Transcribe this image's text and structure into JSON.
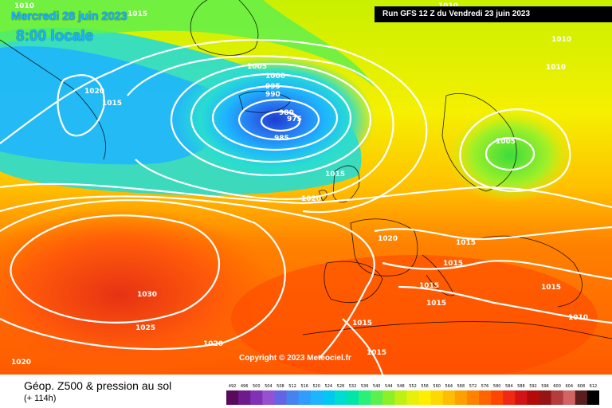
{
  "header": {
    "date": "Mercredi 28 juin 2023",
    "time": "8:00 locale",
    "run": "Run GFS 12 Z du Vendredi 23 juin 2023"
  },
  "copyright": "Copyright © 2023 Meteociel.fr",
  "legend": {
    "title": "Géop. Z500 & pression au sol",
    "subtitle": "(+ 114h)",
    "ticks": [
      "492",
      "496",
      "500",
      "504",
      "508",
      "512",
      "516",
      "520",
      "524",
      "528",
      "532",
      "536",
      "540",
      "544",
      "548",
      "552",
      "556",
      "560",
      "564",
      "568",
      "572",
      "576",
      "580",
      "584",
      "588",
      "592",
      "596",
      "600",
      "604",
      "608",
      "612"
    ],
    "colors": [
      "#5a0a5a",
      "#6e1a8c",
      "#8230b4",
      "#9650d2",
      "#6464e6",
      "#4682f0",
      "#329bff",
      "#1eb4ff",
      "#00c8f0",
      "#00dcd2",
      "#00e6a8",
      "#28f07a",
      "#5af050",
      "#8cf028",
      "#bef014",
      "#e6f00a",
      "#ffee00",
      "#ffd800",
      "#ffbe00",
      "#ffa000",
      "#ff8200",
      "#ff6400",
      "#ff4600",
      "#f02814",
      "#d21414",
      "#b40a0a",
      "#961414",
      "#b43c3c",
      "#d26464",
      "#5a1e1e",
      "#000000"
    ]
  },
  "isobars": [
    "1010",
    "1015",
    "1010",
    "1010",
    "1005",
    "1000",
    "995",
    "990",
    "980",
    "975",
    "985",
    "1020",
    "1015",
    "1010",
    "1005",
    "1015",
    "1020",
    "1020",
    "1015",
    "1015",
    "1015",
    "1030",
    "1025",
    "1020",
    "1015",
    "1015",
    "1015",
    "1015",
    "1010",
    "1020"
  ]
}
